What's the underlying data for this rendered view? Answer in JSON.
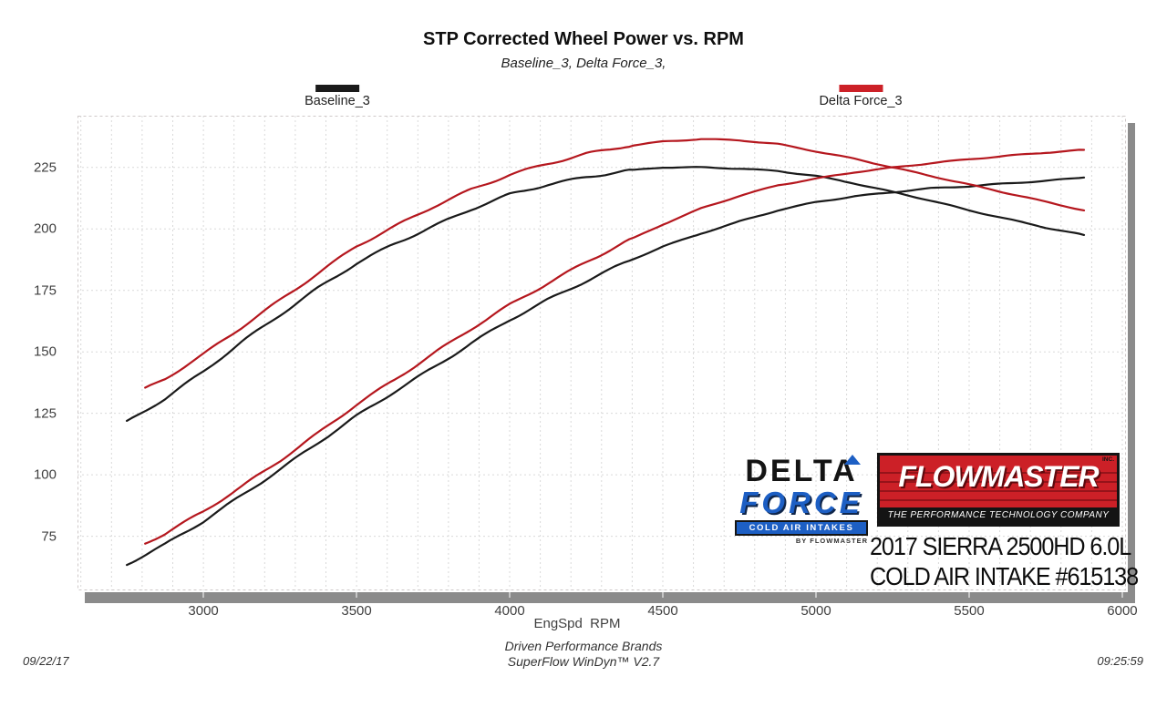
{
  "title": "STP Corrected Wheel Power vs. RPM",
  "subtitle": "Baseline_3, Delta Force_3,",
  "legend": [
    {
      "label": "Baseline_3",
      "color": "#1a1a1a"
    },
    {
      "label": "Delta Force_3",
      "color": "#cc2027"
    }
  ],
  "axis": {
    "x_title": "EngSpd  RPM"
  },
  "footer": {
    "brand_line": "Driven Performance Brands",
    "software_line": "SuperFlow WinDyn™ V2.7",
    "date": "09/22/17",
    "time": "09:25:59"
  },
  "logos": {
    "delta_force": {
      "line1": "DELTA",
      "line2": "FORCE",
      "line3": "COLD AIR INTAKES",
      "line4": "BY FLOWMASTER",
      "blue": "#1d5fc4"
    },
    "flowmaster": {
      "name": "FLOWMASTER",
      "inc": "INC.",
      "tagline": "THE PERFORMANCE TECHNOLOGY COMPANY",
      "red": "#cc2027"
    },
    "vehicle_line1": "2017 SIERRA 2500HD 6.0L",
    "vehicle_line2": "COLD AIR INTAKE #615138"
  },
  "chart_data": {
    "type": "line",
    "title": "STP Corrected Wheel Power vs. RPM",
    "xlabel": "EngSpd RPM",
    "ylabel": "",
    "grid": "dashed",
    "legend_position": "top",
    "x_range": [
      2589,
      6012
    ],
    "y_range": [
      53,
      246
    ],
    "x_ticks": [
      3000,
      3500,
      4000,
      4500,
      5000,
      5500,
      6000
    ],
    "x_minor_step": 100,
    "y_ticks": [
      75,
      100,
      125,
      150,
      175,
      200,
      225
    ],
    "series": [
      {
        "name": "Baseline_3 torque",
        "run": "Baseline_3",
        "measure": "torque",
        "color": "#1a1a1a",
        "rpm": [
          2750,
          2875,
          3000,
          3125,
          3250,
          3375,
          3500,
          3625,
          3750,
          3875,
          4000,
          4125,
          4250,
          4375,
          4500,
          4625,
          4750,
          4875,
          5000,
          5125,
          5250,
          5375,
          5500,
          5625,
          5750,
          5875
        ],
        "values": [
          121.5,
          131,
          142,
          154,
          165,
          176,
          186,
          194,
          201,
          208,
          214,
          218,
          221,
          223.5,
          225,
          225,
          224.5,
          223.5,
          221.5,
          218.5,
          215,
          211.5,
          207.5,
          204,
          200.5,
          197.5
        ]
      },
      {
        "name": "Baseline_3 power",
        "run": "Baseline_3",
        "measure": "power",
        "color": "#1a1a1a",
        "rpm": [
          2750,
          2875,
          3000,
          3125,
          3250,
          3375,
          3500,
          3625,
          3750,
          3875,
          4000,
          4125,
          4250,
          4375,
          4500,
          4625,
          4750,
          4875,
          5000,
          5125,
          5250,
          5375,
          5500,
          5625,
          5750,
          5875
        ],
        "values": [
          63.6,
          71.7,
          81.1,
          91.6,
          102.1,
          113.1,
          123.9,
          133.9,
          143.5,
          153.5,
          163.0,
          171.2,
          178.8,
          186.2,
          192.8,
          198.1,
          203.0,
          207.5,
          210.9,
          213.2,
          214.9,
          216.5,
          217.3,
          218.5,
          219.5,
          220.9
        ]
      },
      {
        "name": "Delta Force_3 torque",
        "run": "Delta Force_3",
        "measure": "torque",
        "color": "#b5171e",
        "rpm": [
          2810,
          2875,
          3000,
          3125,
          3250,
          3375,
          3500,
          3625,
          3750,
          3875,
          4000,
          4125,
          4250,
          4375,
          4500,
          4625,
          4750,
          4875,
          5000,
          5125,
          5250,
          5375,
          5500,
          5625,
          5750,
          5875
        ],
        "values": [
          135,
          139,
          149,
          160,
          171,
          182,
          193,
          201,
          209,
          216,
          222,
          226.5,
          230.5,
          233.5,
          235.5,
          236.5,
          236,
          234.5,
          231.5,
          228.5,
          225,
          221.5,
          218,
          214.5,
          211,
          207.5
        ]
      },
      {
        "name": "Delta Force_3 power",
        "run": "Delta Force_3",
        "measure": "power",
        "color": "#b5171e",
        "rpm": [
          2810,
          2875,
          3000,
          3125,
          3250,
          3375,
          3500,
          3625,
          3750,
          3875,
          4000,
          4125,
          4250,
          4375,
          4500,
          4625,
          4750,
          4875,
          5000,
          5125,
          5250,
          5375,
          5500,
          5625,
          5750,
          5875
        ],
        "values": [
          72.2,
          76.1,
          85.1,
          95.2,
          105.8,
          117.0,
          128.6,
          138.7,
          149.2,
          159.4,
          169.1,
          177.9,
          186.5,
          194.5,
          201.8,
          208.3,
          213.4,
          217.7,
          220.4,
          223.0,
          224.9,
          226.7,
          228.3,
          229.7,
          231.0,
          232.1
        ]
      }
    ]
  }
}
